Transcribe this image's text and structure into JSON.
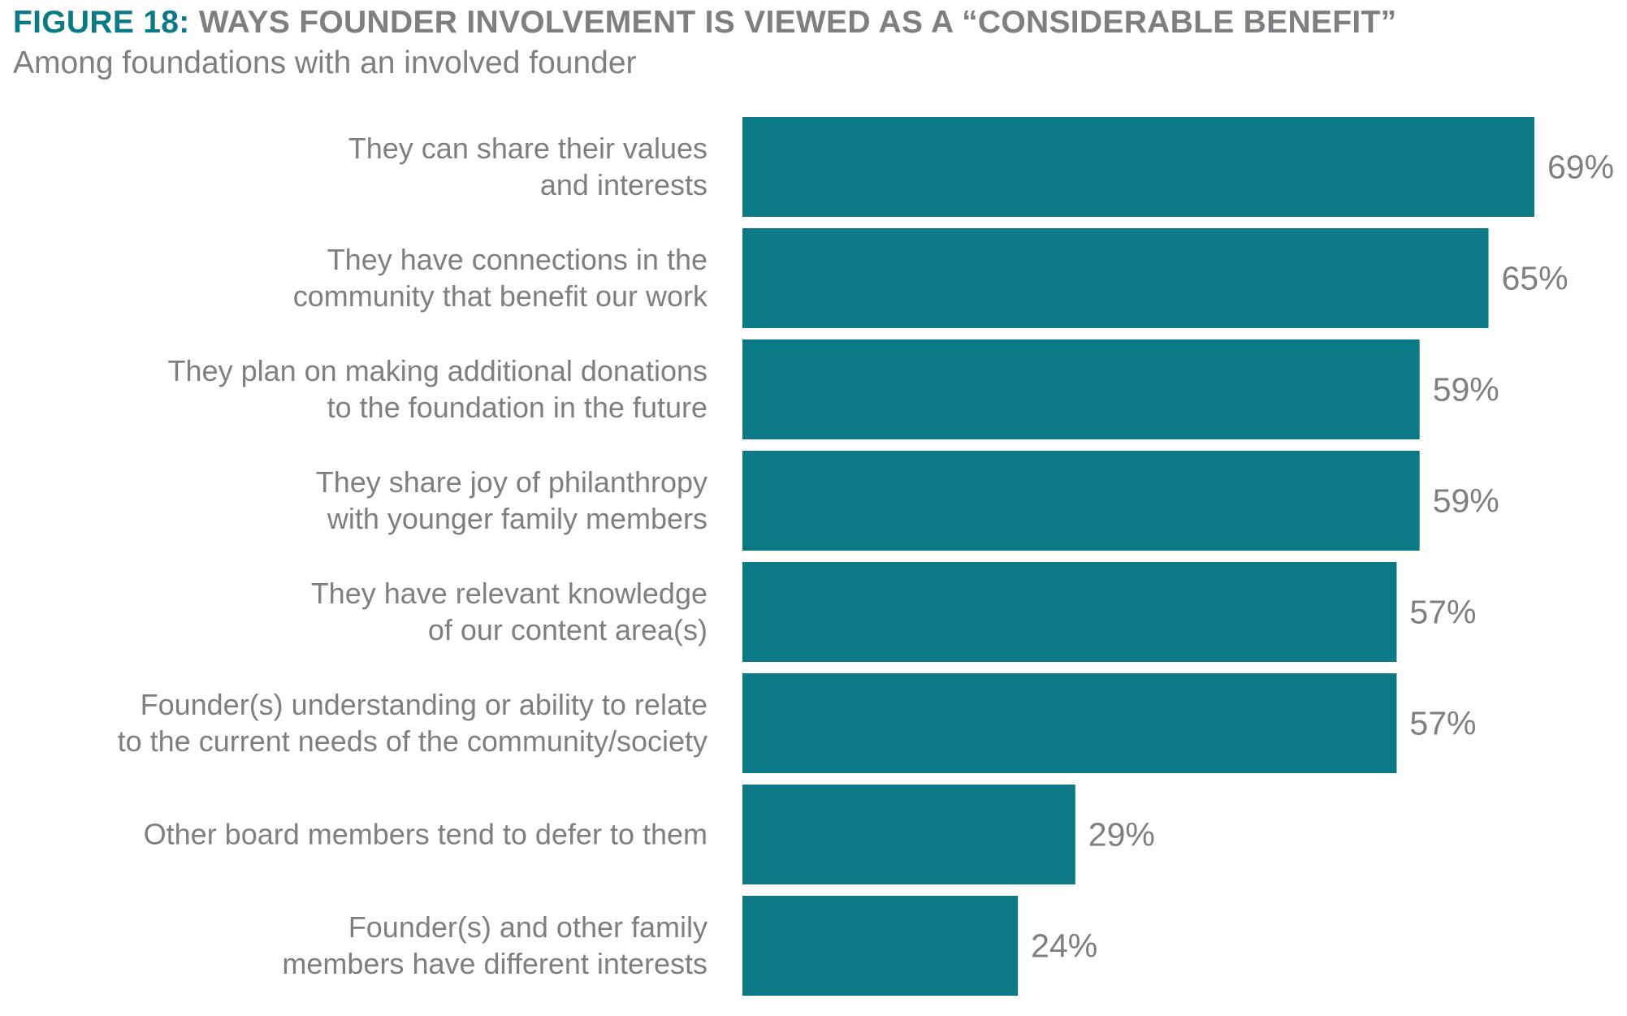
{
  "figure": {
    "number": "FIGURE 18:",
    "heading": "WAYS FOUNDER INVOLVEMENT IS VIEWED AS A “CONSIDERABLE BENEFIT”",
    "subtitle": "Among foundations with an involved founder"
  },
  "colors": {
    "bar": "#0b7a86",
    "title_accent": "#0b7a86",
    "text": "#7d7f82"
  },
  "chart_data": {
    "type": "bar",
    "orientation": "horizontal",
    "title": "WAYS FOUNDER INVOLVEMENT IS VIEWED AS A “CONSIDERABLE BENEFIT”",
    "subtitle": "Among foundations with an involved founder",
    "unit": "%",
    "xlim": [
      0,
      69
    ],
    "grid": false,
    "categories": [
      [
        "They can share their values",
        "and interests"
      ],
      [
        "They have connections in the",
        "community that benefit our work"
      ],
      [
        "They plan on making additional donations",
        "to the foundation in the future"
      ],
      [
        "They share joy of philanthropy",
        "with younger family members"
      ],
      [
        "They have relevant knowledge",
        "of our content area(s)"
      ],
      [
        "Founder(s) understanding or ability to relate",
        "to the current needs of the community/society"
      ],
      [
        "Other board members tend to defer to them"
      ],
      [
        "Founder(s) and other family",
        "members have different interests"
      ]
    ],
    "values": [
      69,
      65,
      59,
      59,
      57,
      57,
      29,
      24
    ],
    "value_labels": [
      "69%",
      "65%",
      "59%",
      "59%",
      "57%",
      "57%",
      "29%",
      "24%"
    ]
  }
}
